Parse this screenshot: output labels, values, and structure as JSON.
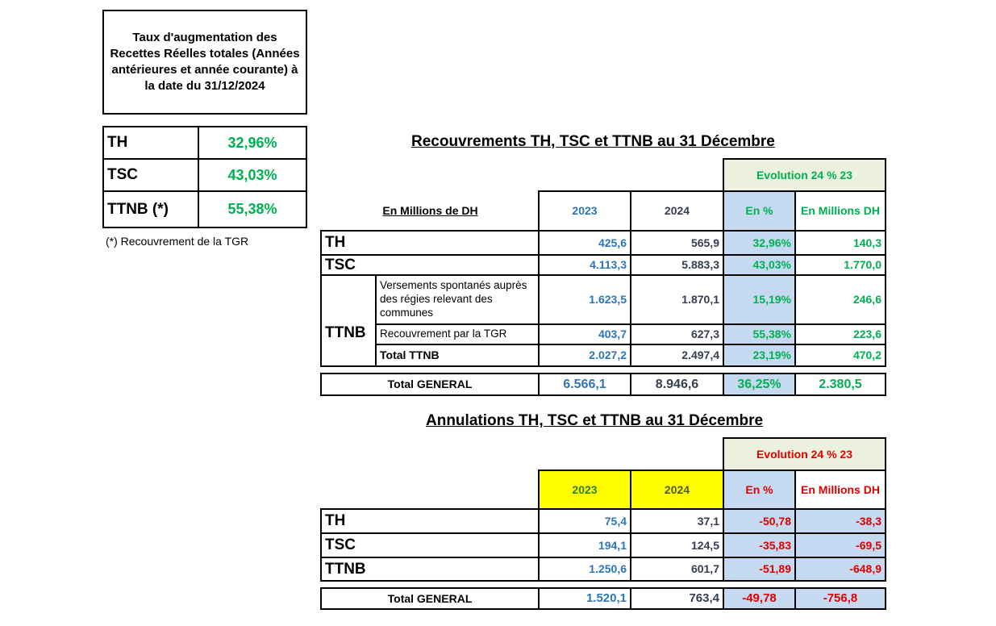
{
  "summary": {
    "title": "Taux d'augmentation des Recettes Réelles totales (Années antérieures et année courante) à la date du 31/12/2024",
    "rows": [
      {
        "label": "TH",
        "value": "32,96%"
      },
      {
        "label": "TSC",
        "value": "43,03%"
      },
      {
        "label": "TTNB (*)",
        "value": "55,38%"
      }
    ],
    "footnote": "(*) Recouvrement de la TGR"
  },
  "recouvrements": {
    "title": "Recouvrements TH, TSC et TTNB au 31 Décembre",
    "evolution": "Evolution 24 % 23",
    "unit": "En Millions de DH",
    "headers": [
      "2023",
      "2024",
      "En %",
      "En Millions DH"
    ],
    "th": {
      "label": "TH",
      "v": [
        "425,6",
        "565,9",
        "32,96%",
        "140,3"
      ]
    },
    "tsc": {
      "label": "TSC",
      "v": [
        "4.113,3",
        "5.883,3",
        "43,03%",
        "1.770,0"
      ]
    },
    "ttnb": {
      "label": "TTNB",
      "versements": {
        "label": "Versements spontanés auprès des régies relevant des communes",
        "v": [
          "1.623,5",
          "1.870,1",
          "15,19%",
          "246,6"
        ]
      },
      "tgr": {
        "label": "Recouvrement par la TGR",
        "v": [
          "403,7",
          "627,3",
          "55,38%",
          "223,6"
        ]
      },
      "total": {
        "label": "Total TTNB",
        "v": [
          "2.027,2",
          "2.497,4",
          "23,19%",
          "470,2"
        ]
      }
    },
    "total": {
      "label": "Total GENERAL",
      "v": [
        "6.566,1",
        "8.946,6",
        "36,25%",
        "2.380,5"
      ]
    }
  },
  "annulations": {
    "title": "Annulations TH, TSC et TTNB au 31 Décembre",
    "evolution": "Evolution 24 % 23",
    "headers": [
      "2023",
      "2024",
      "En %",
      "En Millions DH"
    ],
    "rows": [
      {
        "label": "TH",
        "v": [
          "75,4",
          "37,1",
          "-50,78",
          "-38,3"
        ]
      },
      {
        "label": "TSC",
        "v": [
          "194,1",
          "124,5",
          "-35,83",
          "-69,5"
        ]
      },
      {
        "label": "TTNB",
        "v": [
          "1.250,6",
          "601,7",
          "-51,89",
          "-648,9"
        ]
      }
    ],
    "total": {
      "label": "Total GENERAL",
      "v": [
        "1.520,1",
        "763,4",
        "-49,78",
        "-756,8"
      ]
    }
  },
  "colors": {
    "blue": "#2e75b6",
    "green": "#00b050",
    "red": "#e00000",
    "light_blue": "#c5d9f1",
    "yellow": "#ffff00"
  }
}
